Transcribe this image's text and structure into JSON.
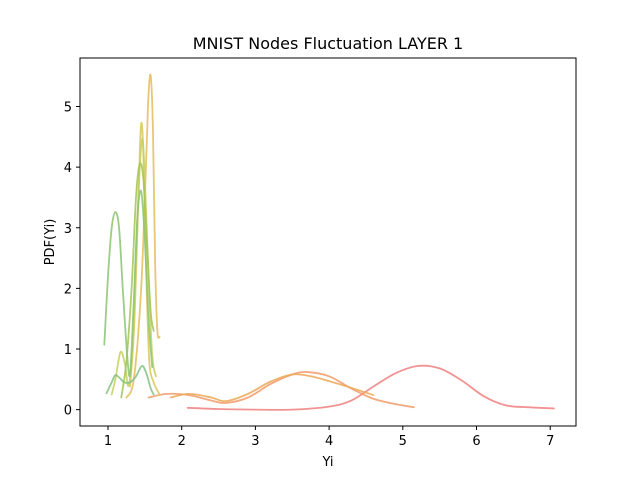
{
  "chart_data": {
    "type": "line",
    "title": "MNIST Nodes Fluctuation LAYER 1",
    "xlabel": "Yi",
    "ylabel": "PDF(Yi)",
    "xlim": [
      0.62,
      7.35
    ],
    "ylim": [
      -0.27,
      5.8
    ],
    "xticks": [
      1,
      2,
      3,
      4,
      5,
      6,
      7
    ],
    "yticks": [
      0,
      1,
      2,
      3,
      4,
      5
    ],
    "grid": false,
    "legend": "none",
    "series": [
      {
        "color": "#f08080",
        "values": [
          [
            2.08,
            0.03
          ],
          [
            2.5,
            0.01
          ],
          [
            3.0,
            0.0
          ],
          [
            3.5,
            0.0
          ],
          [
            4.0,
            0.05
          ],
          [
            4.3,
            0.15
          ],
          [
            4.6,
            0.38
          ],
          [
            4.9,
            0.6
          ],
          [
            5.2,
            0.72
          ],
          [
            5.5,
            0.68
          ],
          [
            5.8,
            0.48
          ],
          [
            6.1,
            0.22
          ],
          [
            6.4,
            0.07
          ],
          [
            6.7,
            0.04
          ],
          [
            7.05,
            0.02
          ]
        ]
      },
      {
        "color": "#f29a68",
        "values": [
          [
            1.55,
            0.2
          ],
          [
            1.8,
            0.26
          ],
          [
            2.1,
            0.24
          ],
          [
            2.4,
            0.15
          ],
          [
            2.6,
            0.11
          ],
          [
            2.9,
            0.2
          ],
          [
            3.2,
            0.42
          ],
          [
            3.5,
            0.58
          ],
          [
            3.7,
            0.62
          ],
          [
            4.0,
            0.55
          ],
          [
            4.3,
            0.35
          ],
          [
            4.6,
            0.18
          ],
          [
            4.9,
            0.09
          ],
          [
            5.15,
            0.04
          ]
        ]
      },
      {
        "color": "#eba858",
        "values": [
          [
            1.85,
            0.2
          ],
          [
            2.1,
            0.26
          ],
          [
            2.4,
            0.2
          ],
          [
            2.6,
            0.14
          ],
          [
            2.9,
            0.26
          ],
          [
            3.2,
            0.46
          ],
          [
            3.5,
            0.58
          ],
          [
            3.75,
            0.55
          ],
          [
            4.0,
            0.47
          ],
          [
            4.3,
            0.36
          ],
          [
            4.6,
            0.24
          ]
        ]
      },
      {
        "color": "#e4bc5a",
        "values": [
          [
            1.25,
            0.2
          ],
          [
            1.35,
            0.5
          ],
          [
            1.45,
            2.0
          ],
          [
            1.52,
            4.2
          ],
          [
            1.55,
            5.2
          ],
          [
            1.58,
            5.5
          ],
          [
            1.61,
            4.6
          ],
          [
            1.64,
            2.4
          ],
          [
            1.67,
            1.3
          ],
          [
            1.7,
            1.2
          ]
        ]
      },
      {
        "color": "#d9c75a",
        "values": [
          [
            1.3,
            0.38
          ],
          [
            1.36,
            1.5
          ],
          [
            1.42,
            3.8
          ],
          [
            1.45,
            4.72
          ],
          [
            1.48,
            4.2
          ],
          [
            1.52,
            2.2
          ],
          [
            1.56,
            0.8
          ],
          [
            1.62,
            0.45
          ],
          [
            1.7,
            0.25
          ]
        ]
      },
      {
        "color": "#c6d060",
        "values": [
          [
            1.05,
            0.25
          ],
          [
            1.1,
            0.5
          ],
          [
            1.17,
            0.95
          ],
          [
            1.23,
            0.75
          ],
          [
            1.28,
            0.4
          ],
          [
            1.34,
            1.2
          ],
          [
            1.4,
            3.2
          ],
          [
            1.46,
            4.45
          ],
          [
            1.5,
            3.8
          ],
          [
            1.55,
            2.2
          ],
          [
            1.6,
            0.9
          ],
          [
            1.65,
            0.55
          ]
        ]
      },
      {
        "color": "#a3c452",
        "values": [
          [
            1.18,
            0.2
          ],
          [
            1.25,
            0.8
          ],
          [
            1.32,
            2.0
          ],
          [
            1.38,
            3.5
          ],
          [
            1.43,
            4.05
          ],
          [
            1.48,
            3.8
          ],
          [
            1.53,
            2.7
          ],
          [
            1.58,
            1.6
          ],
          [
            1.62,
            1.3
          ]
        ]
      },
      {
        "color": "#8cc470",
        "values": [
          [
            0.95,
            1.07
          ],
          [
            1.0,
            2.2
          ],
          [
            1.05,
            3.0
          ],
          [
            1.1,
            3.26
          ],
          [
            1.15,
            3.0
          ],
          [
            1.2,
            2.0
          ],
          [
            1.26,
            0.9
          ],
          [
            1.3,
            0.6
          ],
          [
            1.35,
            1.8
          ],
          [
            1.4,
            3.2
          ],
          [
            1.45,
            3.6
          ],
          [
            1.5,
            2.8
          ],
          [
            1.55,
            1.5
          ],
          [
            1.6,
            0.7
          ]
        ]
      },
      {
        "color": "#82c280",
        "values": [
          [
            0.98,
            0.27
          ],
          [
            1.05,
            0.45
          ],
          [
            1.1,
            0.57
          ],
          [
            1.16,
            0.52
          ],
          [
            1.22,
            0.45
          ],
          [
            1.3,
            0.45
          ],
          [
            1.38,
            0.55
          ],
          [
            1.46,
            0.72
          ],
          [
            1.52,
            0.6
          ],
          [
            1.58,
            0.35
          ],
          [
            1.62,
            0.25
          ]
        ]
      }
    ]
  }
}
